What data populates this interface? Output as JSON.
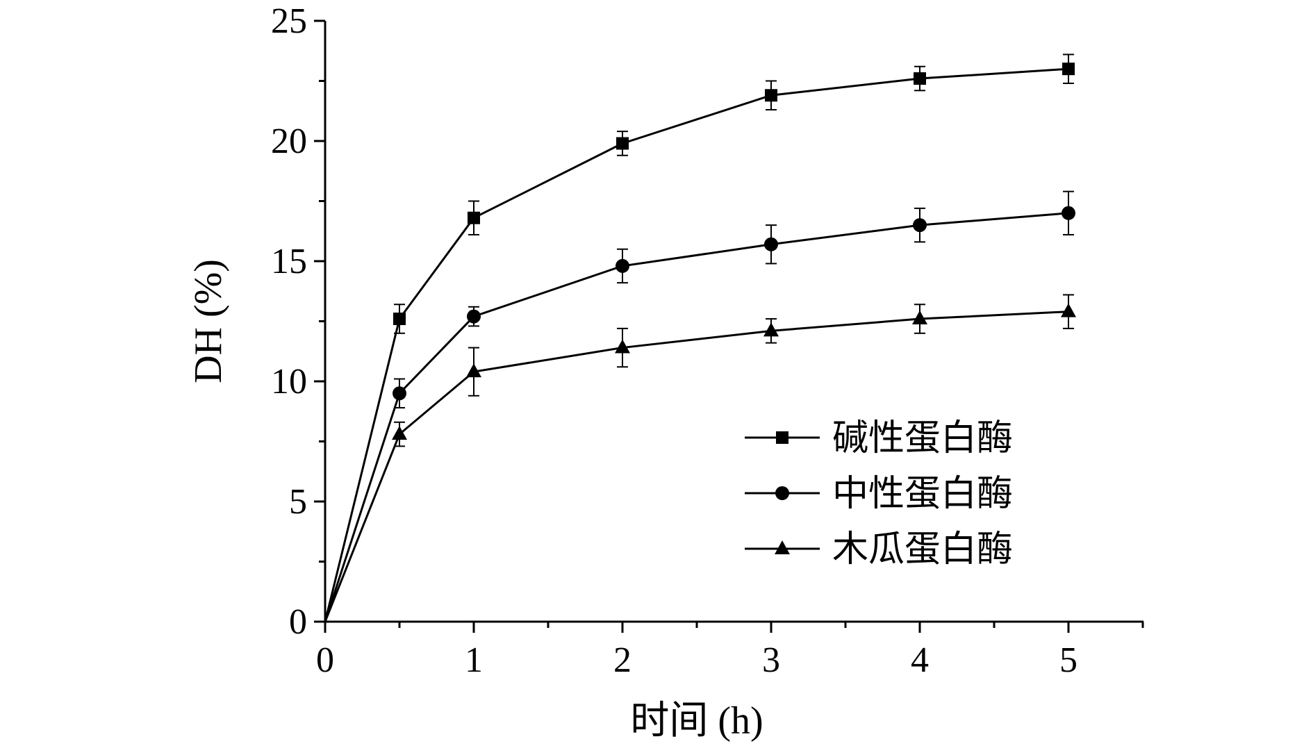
{
  "chart_data": {
    "type": "line",
    "xlabel": "时间 (h)",
    "ylabel": "DH (%)",
    "xlim": [
      0,
      5.5
    ],
    "ylim": [
      0,
      25
    ],
    "x_ticks": [
      0,
      1,
      2,
      3,
      4,
      5
    ],
    "y_ticks": [
      0,
      5,
      10,
      15,
      20,
      25
    ],
    "grid": false,
    "legend_position": "bottom-right",
    "series": [
      {
        "name": "碱性蛋白酶",
        "marker": "square",
        "x": [
          0,
          0.5,
          1,
          2,
          3,
          4,
          5
        ],
        "values": [
          0,
          12.6,
          16.8,
          19.9,
          21.9,
          22.6,
          23.0
        ],
        "errors": [
          0,
          0.6,
          0.7,
          0.5,
          0.6,
          0.5,
          0.6
        ]
      },
      {
        "name": "中性蛋白酶",
        "marker": "circle",
        "x": [
          0,
          0.5,
          1,
          2,
          3,
          4,
          5
        ],
        "values": [
          0,
          9.5,
          12.7,
          14.8,
          15.7,
          16.5,
          17.0
        ],
        "errors": [
          0,
          0.6,
          0.4,
          0.7,
          0.8,
          0.7,
          0.9
        ]
      },
      {
        "name": "木瓜蛋白酶",
        "marker": "triangle",
        "x": [
          0,
          0.5,
          1,
          2,
          3,
          4,
          5
        ],
        "values": [
          0,
          7.8,
          10.4,
          11.4,
          12.1,
          12.6,
          12.9
        ],
        "errors": [
          0,
          0.5,
          1.0,
          0.8,
          0.5,
          0.6,
          0.7
        ]
      }
    ]
  }
}
